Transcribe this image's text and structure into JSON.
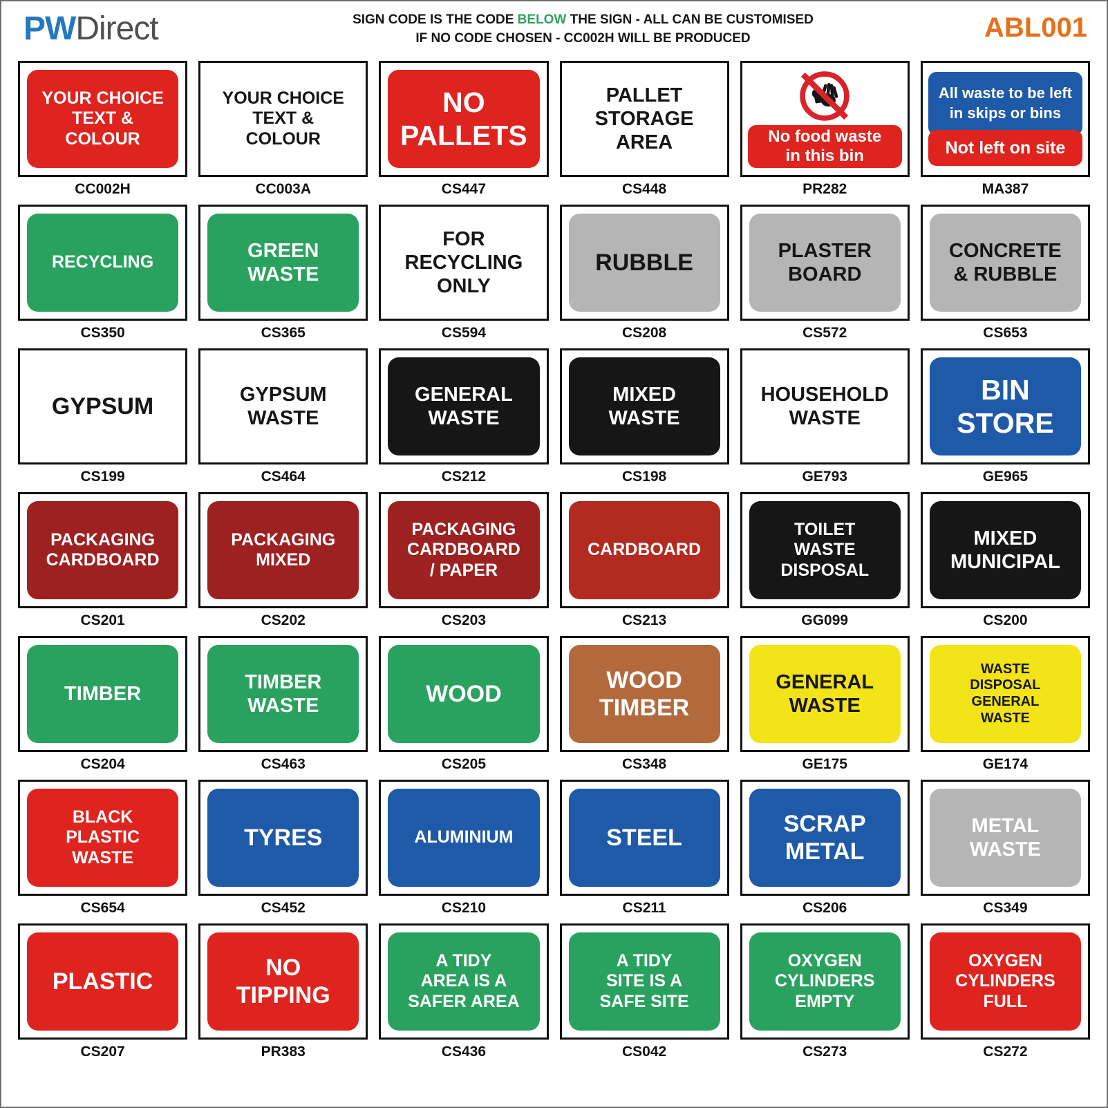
{
  "header": {
    "logo_pw": "PW",
    "logo_direct": "Direct",
    "notice_line1_prefix": "SIGN CODE IS THE CODE ",
    "notice_line1_highlight": "BELOW",
    "notice_line1_suffix": " THE SIGN - ALL CAN BE CUSTOMISED",
    "notice_line2": "IF NO CODE CHOSEN - CC002H WILL BE PRODUCED",
    "sheet_code": "ABL001"
  },
  "colors": {
    "red": "#df241f",
    "dark_red": "#9e2121",
    "brick_red": "#b32b20",
    "green": "#2aa25f",
    "grey": "#b5b5b5",
    "black": "#161616",
    "blue": "#1e5aa8",
    "brown": "#b26a3d",
    "yellow": "#f2e418",
    "white": "#ffffff"
  },
  "signs": [
    {
      "code": "CC002H",
      "type": "panel",
      "bg": "red",
      "fg": "white",
      "size": "md",
      "lines": [
        "YOUR CHOICE",
        "TEXT &",
        "COLOUR"
      ]
    },
    {
      "code": "CC003A",
      "type": "plain",
      "fg": "black",
      "size": "md",
      "lines": [
        "YOUR CHOICE",
        "TEXT &",
        "COLOUR"
      ]
    },
    {
      "code": "CS447",
      "type": "panel",
      "bg": "red",
      "fg": "white",
      "size": "xxl",
      "lines": [
        "NO",
        "PALLETS"
      ]
    },
    {
      "code": "CS448",
      "type": "plain",
      "fg": "black",
      "size": "lg",
      "lines": [
        "PALLET",
        "STORAGE",
        "AREA"
      ]
    },
    {
      "code": "PR282",
      "type": "prohibition",
      "icon": "no-access-prohibition-icon",
      "panel_bg": "red",
      "panel_fg": "white",
      "panel_lines": [
        "No food waste",
        "in this bin"
      ]
    },
    {
      "code": "MA387",
      "type": "two-panel",
      "top": {
        "bg": "blue",
        "fg": "white",
        "lines": [
          "All waste to be left",
          "in skips or bins"
        ]
      },
      "bottom": {
        "bg": "red",
        "fg": "white",
        "lines": [
          "Not left on site"
        ]
      }
    },
    {
      "code": "CS350",
      "type": "panel",
      "bg": "green",
      "fg": "white",
      "size": "md",
      "lines": [
        "RECYCLING"
      ]
    },
    {
      "code": "CS365",
      "type": "panel",
      "bg": "green",
      "fg": "white",
      "size": "lg",
      "lines": [
        "GREEN",
        "WASTE"
      ]
    },
    {
      "code": "CS594",
      "type": "plain",
      "fg": "black",
      "size": "lg",
      "lines": [
        "FOR",
        "RECYCLING",
        "ONLY"
      ]
    },
    {
      "code": "CS208",
      "type": "panel",
      "bg": "grey",
      "fg": "black",
      "size": "xl",
      "lines": [
        "RUBBLE"
      ]
    },
    {
      "code": "CS572",
      "type": "panel",
      "bg": "grey",
      "fg": "black",
      "size": "lg",
      "lines": [
        "PLASTER",
        "BOARD"
      ]
    },
    {
      "code": "CS653",
      "type": "panel",
      "bg": "grey",
      "fg": "black",
      "size": "lg",
      "lines": [
        "CONCRETE",
        "& RUBBLE"
      ]
    },
    {
      "code": "CS199",
      "type": "plain",
      "fg": "black",
      "size": "xl",
      "lines": [
        "GYPSUM"
      ]
    },
    {
      "code": "CS464",
      "type": "plain",
      "fg": "black",
      "size": "lg",
      "lines": [
        "GYPSUM",
        "WASTE"
      ]
    },
    {
      "code": "CS212",
      "type": "panel",
      "bg": "black",
      "fg": "white",
      "size": "lg",
      "lines": [
        "GENERAL",
        "WASTE"
      ]
    },
    {
      "code": "CS198",
      "type": "panel",
      "bg": "black",
      "fg": "white",
      "size": "lg",
      "lines": [
        "MIXED",
        "WASTE"
      ]
    },
    {
      "code": "GE793",
      "type": "plain",
      "fg": "black",
      "size": "lg",
      "lines": [
        "HOUSEHOLD",
        "WASTE"
      ]
    },
    {
      "code": "GE965",
      "type": "panel",
      "bg": "blue",
      "fg": "white",
      "size": "xxl",
      "lines": [
        "BIN",
        "STORE"
      ]
    },
    {
      "code": "CS201",
      "type": "panel",
      "bg": "dark_red",
      "fg": "white",
      "size": "md",
      "lines": [
        "PACKAGING",
        "CARDBOARD"
      ]
    },
    {
      "code": "CS202",
      "type": "panel",
      "bg": "dark_red",
      "fg": "white",
      "size": "md",
      "lines": [
        "PACKAGING",
        "MIXED"
      ]
    },
    {
      "code": "CS203",
      "type": "panel",
      "bg": "dark_red",
      "fg": "white",
      "size": "md",
      "lines": [
        "PACKAGING",
        "CARDBOARD",
        "/ PAPER"
      ]
    },
    {
      "code": "CS213",
      "type": "panel",
      "bg": "brick_red",
      "fg": "white",
      "size": "md",
      "lines": [
        "CARDBOARD"
      ]
    },
    {
      "code": "GG099",
      "type": "panel",
      "bg": "black",
      "fg": "white",
      "size": "md",
      "lines": [
        "TOILET",
        "WASTE",
        "DISPOSAL"
      ]
    },
    {
      "code": "CS200",
      "type": "panel",
      "bg": "black",
      "fg": "white",
      "size": "lg",
      "lines": [
        "MIXED",
        "MUNICIPAL"
      ]
    },
    {
      "code": "CS204",
      "type": "panel",
      "bg": "green",
      "fg": "white",
      "size": "lg",
      "lines": [
        "TIMBER"
      ]
    },
    {
      "code": "CS463",
      "type": "panel",
      "bg": "green",
      "fg": "white",
      "size": "lg",
      "lines": [
        "TIMBER",
        "WASTE"
      ]
    },
    {
      "code": "CS205",
      "type": "panel",
      "bg": "green",
      "fg": "white",
      "size": "xl",
      "lines": [
        "WOOD"
      ]
    },
    {
      "code": "CS348",
      "type": "panel",
      "bg": "brown",
      "fg": "white",
      "size": "xl",
      "lines": [
        "WOOD",
        "TIMBER"
      ]
    },
    {
      "code": "GE175",
      "type": "panel",
      "bg": "yellow",
      "fg": "black",
      "size": "lg",
      "lines": [
        "GENERAL",
        "WASTE"
      ]
    },
    {
      "code": "GE174",
      "type": "panel",
      "bg": "yellow",
      "fg": "black",
      "size": "sm",
      "lines": [
        "WASTE",
        "DISPOSAL",
        "GENERAL",
        "WASTE"
      ]
    },
    {
      "code": "CS654",
      "type": "panel",
      "bg": "red",
      "fg": "white",
      "size": "md",
      "lines": [
        "BLACK",
        "PLASTIC",
        "WASTE"
      ]
    },
    {
      "code": "CS452",
      "type": "panel",
      "bg": "blue",
      "fg": "white",
      "size": "xl",
      "lines": [
        "TYRES"
      ]
    },
    {
      "code": "CS210",
      "type": "panel",
      "bg": "blue",
      "fg": "white",
      "size": "md",
      "lines": [
        "ALUMINIUM"
      ]
    },
    {
      "code": "CS211",
      "type": "panel",
      "bg": "blue",
      "fg": "white",
      "size": "xl",
      "lines": [
        "STEEL"
      ]
    },
    {
      "code": "CS206",
      "type": "panel",
      "bg": "blue",
      "fg": "white",
      "size": "xl",
      "lines": [
        "SCRAP",
        "METAL"
      ]
    },
    {
      "code": "CS349",
      "type": "panel",
      "bg": "grey",
      "fg": "white",
      "size": "lg",
      "lines": [
        "METAL",
        "WASTE"
      ]
    },
    {
      "code": "CS207",
      "type": "panel",
      "bg": "red",
      "fg": "white",
      "size": "xl",
      "lines": [
        "PLASTIC"
      ]
    },
    {
      "code": "PR383",
      "type": "panel",
      "bg": "red",
      "fg": "white",
      "size": "xl",
      "lines": [
        "NO",
        "TIPPING"
      ]
    },
    {
      "code": "CS436",
      "type": "panel",
      "bg": "green",
      "fg": "white",
      "size": "md",
      "lines": [
        "A TIDY",
        "AREA IS A",
        "SAFER AREA"
      ]
    },
    {
      "code": "CS042",
      "type": "panel",
      "bg": "green",
      "fg": "white",
      "size": "md",
      "lines": [
        "A TIDY",
        "SITE IS A",
        "SAFE SITE"
      ]
    },
    {
      "code": "CS273",
      "type": "panel",
      "bg": "green",
      "fg": "white",
      "size": "md",
      "lines": [
        "OXYGEN",
        "CYLINDERS",
        "EMPTY"
      ]
    },
    {
      "code": "CS272",
      "type": "panel",
      "bg": "red",
      "fg": "white",
      "size": "md",
      "lines": [
        "OXYGEN",
        "CYLINDERS",
        "FULL"
      ]
    }
  ]
}
